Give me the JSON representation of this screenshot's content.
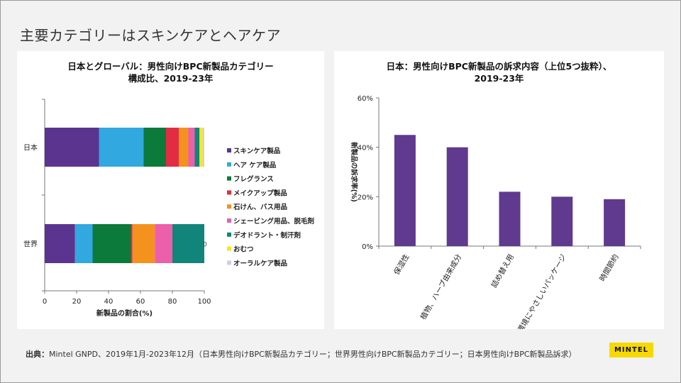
{
  "slide": {
    "title": "主要カテゴリーはスキンケアとヘアケア",
    "source_label": "出典：",
    "source_text": "Mintel GNPD、2019年1月-2023年12月（日本男性向けBPC新製品カテゴリー；世界男性向けBPC新製品カテゴリー；日本男性向けBPC新製品訴求）",
    "logo": "MINTEL"
  },
  "colors": {
    "skincare": "#5b3490",
    "haircare": "#31a8df",
    "fragrance": "#0c7a3a",
    "makeup": "#e12c43",
    "soap": "#f5921e",
    "shaving": "#ec5fab",
    "deodorant": "#12857a",
    "oralcare_misc": "#f7e71c",
    "oralcare": "#d3cbe6",
    "purple_bar": "#5f3a8e",
    "axis": "#777777"
  },
  "chart_data": [
    {
      "type": "bar",
      "orientation": "horizontal",
      "stacked": true,
      "title_line1": "日本とグローバル：男性向けBPC新製品カテゴリー",
      "title_line2": "構成比、2019-23年",
      "categories": [
        "日本",
        "世界"
      ],
      "xlabel": "新製品の割合(%)",
      "xlim": [
        0,
        100
      ],
      "xticks": [
        "0",
        "20",
        "40",
        "60",
        "80",
        "100"
      ],
      "stray_label": "0",
      "legend_position": "right",
      "series": [
        {
          "name": "スキンケア製品",
          "color_key": "skincare",
          "values": [
            34,
            19
          ]
        },
        {
          "name": "ヘア ケア製品",
          "color_key": "haircare",
          "values": [
            28,
            11
          ]
        },
        {
          "name": "フレグランス",
          "color_key": "fragrance",
          "values": [
            14,
            24
          ]
        },
        {
          "name": "メイクアップ製品",
          "color_key": "makeup",
          "values": [
            8,
            1
          ]
        },
        {
          "name": "石けん、バス用品",
          "color_key": "soap",
          "values": [
            6,
            14
          ]
        },
        {
          "name": "シェービング用品、脱毛剤",
          "color_key": "shaving",
          "values": [
            4,
            11
          ]
        },
        {
          "name": "デオドラント・制汗剤",
          "color_key": "deodorant",
          "values": [
            3,
            20
          ]
        },
        {
          "name": "おむつ",
          "color_key": "oralcare_misc",
          "values": [
            2,
            0
          ]
        },
        {
          "name": "オーラルケア製品",
          "color_key": "oralcare",
          "values": [
            1,
            0
          ]
        }
      ]
    },
    {
      "type": "bar",
      "orientation": "vertical",
      "title_line1": "日本：男性向けBPC新製品の訴求内容（上位5つ抜粋）、",
      "title_line2": "2019-23年",
      "ylabel": "新製品の訴求率(%)",
      "ylim": [
        0,
        60
      ],
      "yticks": [
        "0%",
        "20%",
        "40%",
        "60%"
      ],
      "categories": [
        "保湿性",
        "植物、ハーブ由来成分",
        "詰め替え用",
        "環境にやさしいパッケージ",
        "時間節約"
      ],
      "values": [
        45,
        40,
        22,
        20,
        19
      ],
      "color_key": "purple_bar"
    }
  ]
}
